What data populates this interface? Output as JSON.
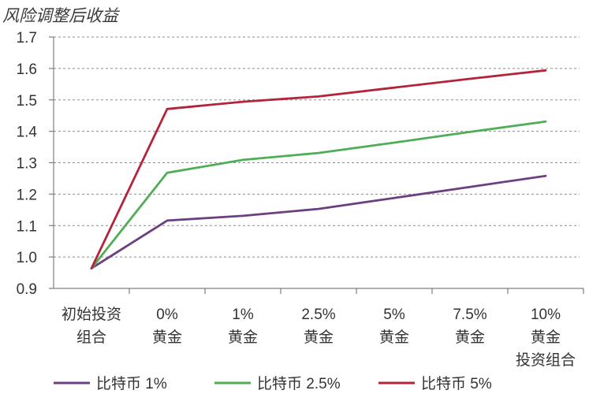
{
  "chart_data": {
    "type": "line",
    "title": "",
    "ylabel": "风险调整后收益",
    "xlabel": "",
    "categories": [
      [
        "初始投资",
        "组合"
      ],
      [
        "0%",
        "黄金"
      ],
      [
        "1%",
        "黄金"
      ],
      [
        "2.5%",
        "黄金"
      ],
      [
        "5%",
        "黄金"
      ],
      [
        "7.5%",
        "黄金"
      ],
      [
        "10%",
        "黄金",
        "投资组合"
      ]
    ],
    "ylim": [
      0.9,
      1.7
    ],
    "yticks": [
      0.9,
      1.0,
      1.1,
      1.2,
      1.3,
      1.4,
      1.5,
      1.6,
      1.7
    ],
    "grid": true,
    "legend_position": "bottom",
    "series": [
      {
        "name": "比特币 1%",
        "color": "#6c3f80",
        "values": [
          0.964,
          1.116,
          1.131,
          1.153,
          1.188,
          1.223,
          1.258
        ]
      },
      {
        "name": "比特币 2.5%",
        "color": "#4fae55",
        "values": [
          0.964,
          1.268,
          1.309,
          1.331,
          1.364,
          1.398,
          1.431
        ]
      },
      {
        "name": "比特币 5%",
        "color": "#b3243a",
        "values": [
          0.964,
          1.471,
          1.494,
          1.511,
          1.539,
          1.567,
          1.594
        ]
      }
    ]
  }
}
